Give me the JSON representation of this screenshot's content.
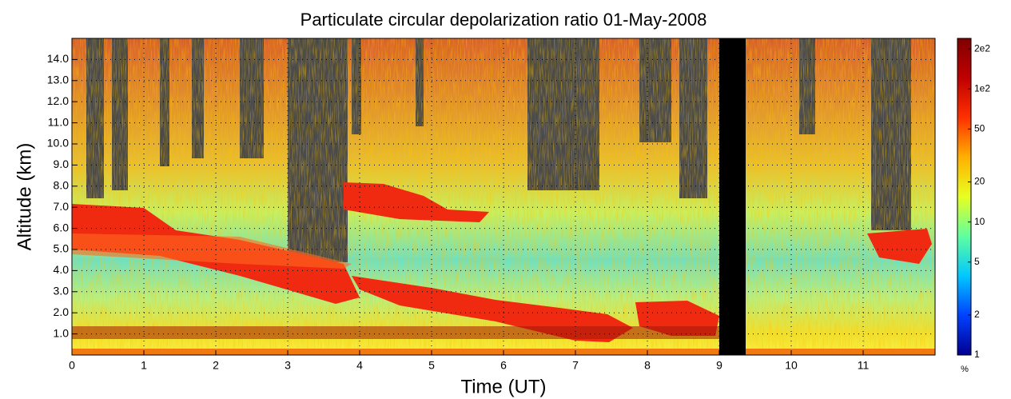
{
  "chart_data": {
    "type": "heatmap",
    "title": "Particulate circular depolarization ratio  01-May-2008",
    "x_label": "Time (UT)",
    "y_label": "Altitude (km)",
    "xlim": [
      0,
      12
    ],
    "xticks": [
      0,
      1,
      2,
      3,
      4,
      5,
      6,
      7,
      8,
      9,
      10,
      11
    ],
    "ylim": [
      0,
      15
    ],
    "yticks": [
      {
        "value": 1,
        "label": "1.0"
      },
      {
        "value": 2,
        "label": "2.0"
      },
      {
        "value": 3,
        "label": "3.0"
      },
      {
        "value": 4,
        "label": "4.0"
      },
      {
        "value": 5,
        "label": "5.0"
      },
      {
        "value": 6,
        "label": "6.0"
      },
      {
        "value": 7,
        "label": "7.0"
      },
      {
        "value": 8,
        "label": "8.0"
      },
      {
        "value": 9,
        "label": "9.0"
      },
      {
        "value": 10,
        "label": "10.0"
      },
      {
        "value": 11,
        "label": "11.0"
      },
      {
        "value": 12,
        "label": "12.0"
      },
      {
        "value": 13,
        "label": "13.0"
      },
      {
        "value": 14,
        "label": "14.0"
      }
    ],
    "grid": true,
    "colorbar": {
      "scale": "log",
      "lim": [
        1,
        240
      ],
      "unit_label": "%",
      "ticks": [
        1,
        2,
        5,
        10,
        20,
        50,
        {
          "value": 100,
          "label": "1e2"
        },
        {
          "value": 200,
          "label": "2e2"
        }
      ],
      "colors": [
        "#000090",
        "#0040ff",
        "#00c8ff",
        "#60ffa0",
        "#e8ff20",
        "#ffb000",
        "#ff3000",
        "#c00000",
        "#800000"
      ]
    }
  }
}
